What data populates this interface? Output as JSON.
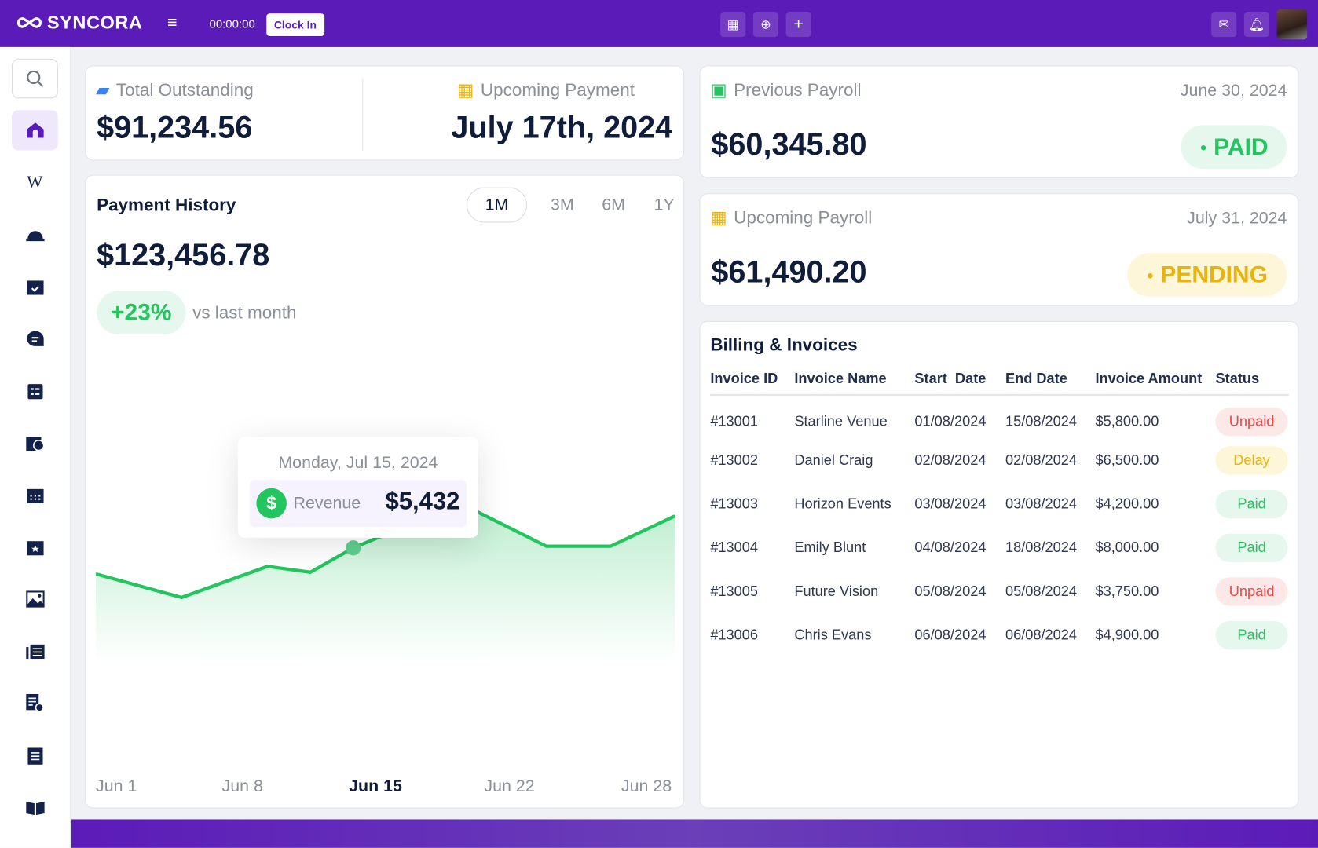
{
  "header": {
    "brand": "SYNCORA",
    "timer": "00:00:00",
    "clock_in_label": "Clock In",
    "icons": [
      "menu-icon",
      "calendar-icon",
      "zoom-icon",
      "plus-icon",
      "mail-icon",
      "bell-icon"
    ]
  },
  "sidebar": {
    "items": [
      "search",
      "home",
      "wiki",
      "safety-helmet",
      "calendar-check",
      "chat",
      "clipboard-list",
      "calendar-clock",
      "calendar-grid",
      "calendar-star",
      "image",
      "news",
      "document-settings",
      "checklist",
      "book"
    ],
    "active": "home"
  },
  "summary": {
    "outstanding_label": "Total Outstanding",
    "outstanding_value": "$91,234.56",
    "upcoming_payment_label": "Upcoming Payment",
    "upcoming_payment_value": "July 17th, 2024"
  },
  "payment_history": {
    "title": "Payment History",
    "total": "$123,456.78",
    "change": "+23%",
    "change_caption": "vs last month",
    "ranges": [
      "1M",
      "3M",
      "6M",
      "1Y"
    ],
    "active_range": "1M",
    "tooltip": {
      "date": "Monday, Jul 15, 2024",
      "label": "Revenue",
      "value": "$5,432"
    }
  },
  "chart_data": {
    "type": "area",
    "x_ticks": [
      "Jun 1",
      "Jun 8",
      "Jun 15",
      "Jun 22",
      "Jun 28"
    ],
    "highlight_tick": "Jun 15",
    "x": [
      1,
      5,
      9,
      11,
      13,
      18,
      22,
      25,
      28
    ],
    "values": [
      4812,
      4252,
      4992,
      4852,
      5432,
      6492,
      5472,
      5472,
      6192
    ],
    "highlight_index": 4,
    "color": "#22c55e",
    "grid": false
  },
  "previous_payroll": {
    "label": "Previous Payroll",
    "date": "June 30, 2024",
    "amount": "$60,345.80",
    "status": "PAID"
  },
  "upcoming_payroll": {
    "label": "Upcoming Payroll",
    "date": "July 31, 2024",
    "amount": "$61,490.20",
    "status": "PENDING"
  },
  "invoices": {
    "title": "Billing & Invoices",
    "columns": [
      "Invoice ID",
      "Invoice Name",
      "Start  Date",
      "End Date",
      "Invoice Amount",
      "Status"
    ],
    "rows": [
      [
        "#13001",
        "Starline Venue",
        "01/08/2024",
        "15/08/2024",
        "$5,800.00",
        "Unpaid"
      ],
      [
        "#13002",
        "Daniel Craig",
        "02/08/2024",
        "02/08/2024",
        "$6,500.00",
        "Delay"
      ],
      [
        "#13003",
        "Horizon Events",
        "03/08/2024",
        "03/08/2024",
        "$4,200.00",
        "Paid"
      ],
      [
        "#13004",
        "Emily Blunt",
        "04/08/2024",
        "18/08/2024",
        "$8,000.00",
        "Paid"
      ],
      [
        "#13005",
        "Future Vision",
        "05/08/2024",
        "05/08/2024",
        "$3,750.00",
        "Unpaid"
      ],
      [
        "#13006",
        "Chris Evans",
        "06/08/2024",
        "06/08/2024",
        "$4,900.00",
        "Paid"
      ]
    ]
  },
  "colors": {
    "brand": "#5b1bb8",
    "paid": "#22c55e",
    "pending": "#eab308",
    "unpaid": "#ef4444",
    "text": "#0f1d3a"
  }
}
